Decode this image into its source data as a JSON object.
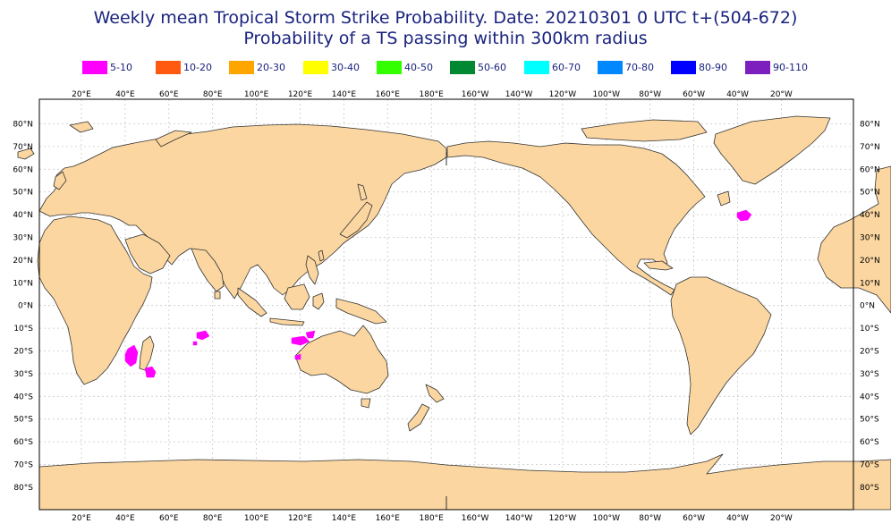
{
  "title": "Weekly mean Tropical Storm Strike Probability. Date: 20210301  0 UTC    t+(504-672)",
  "subtitle": "Probability of a TS passing within  300km radius",
  "legend": [
    {
      "label": "5-10",
      "color": "#ff00ff"
    },
    {
      "label": "10-20",
      "color": "#ff5a10"
    },
    {
      "label": "20-30",
      "color": "#ffa500"
    },
    {
      "label": "30-40",
      "color": "#ffff00"
    },
    {
      "label": "40-50",
      "color": "#33ff00"
    },
    {
      "label": "50-60",
      "color": "#008833"
    },
    {
      "label": "60-70",
      "color": "#00ffff"
    },
    {
      "label": "70-80",
      "color": "#0088ff"
    },
    {
      "label": "80-90",
      "color": "#0000ff"
    },
    {
      "label": "90-110",
      "color": "#7d1fbf"
    }
  ],
  "lon_labels": [
    "20°E",
    "40°E",
    "60°E",
    "80°E",
    "100°E",
    "120°E",
    "140°E",
    "160°E",
    "180°E",
    "160°W",
    "140°W",
    "120°W",
    "100°W",
    "80°W",
    "60°W",
    "40°W",
    "20°W"
  ],
  "lat_labels": [
    "80°N",
    "70°N",
    "60°N",
    "50°N",
    "40°N",
    "30°N",
    "20°N",
    "10°N",
    "0°N",
    "10°S",
    "20°S",
    "30°S",
    "40°S",
    "50°S",
    "60°S",
    "70°S",
    "80°S"
  ],
  "colors": {
    "land": "#fbd6a0",
    "coast": "#333333",
    "grid": "#c8c8c8",
    "ocean": "#ffffff"
  }
}
